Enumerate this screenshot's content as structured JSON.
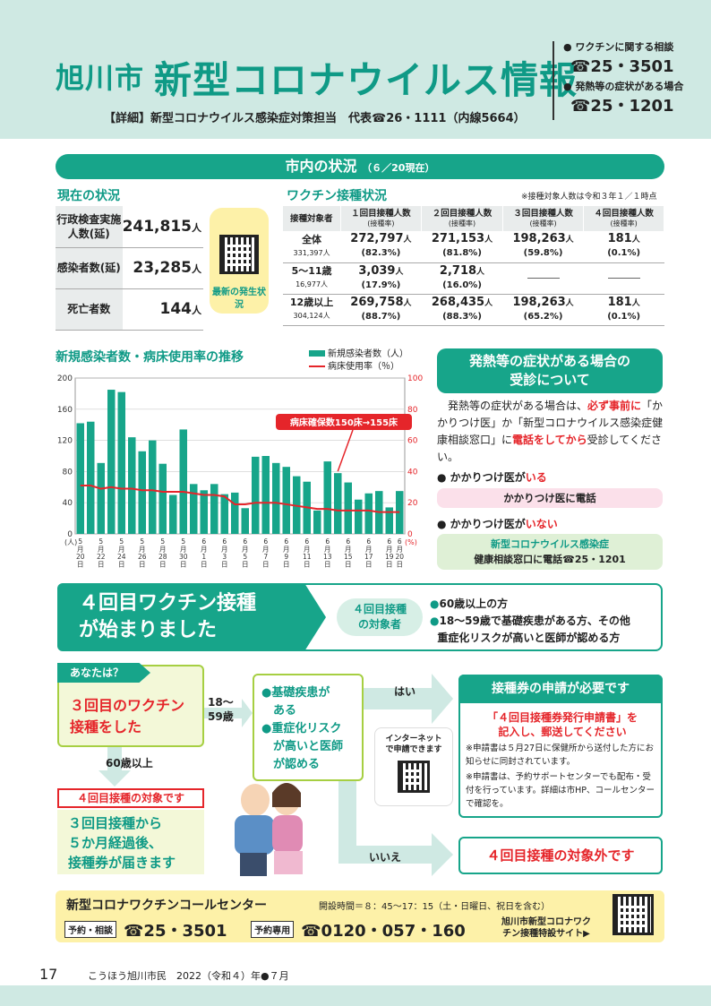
{
  "header": {
    "city": "旭川市",
    "title": "新型コロナウイルス情報",
    "detail": "【詳細】新型コロナウイルス感染症対策担当　代表☎26・1111（内線5664）",
    "contacts": [
      {
        "label": "ワクチンに関する相談",
        "phone": "☎25・3501"
      },
      {
        "label": "発熱等の症状がある場合",
        "phone": "☎25・1201"
      }
    ]
  },
  "situation": {
    "title": "市内の状況",
    "date": "（６／20現在）",
    "current_title": "現在の状況",
    "current": [
      {
        "label": "行政検査実施人数(延)",
        "value": "241,815",
        "unit": "人"
      },
      {
        "label": "感染者数(延)",
        "value": "23,285",
        "unit": "人"
      },
      {
        "label": "死亡者数",
        "value": "144",
        "unit": "人"
      }
    ],
    "qr_label": "最新の発生状況",
    "vaccine_title": "ワクチン接種状況",
    "vaccine_note": "※接種対象人数は令和３年１／１時点",
    "vaccine_headers": [
      "接種対象者",
      "１回目接種人数",
      "２回目接種人数",
      "３回目接種人数",
      "４回目接種人数"
    ],
    "vaccine_subheader": "(接種率)",
    "vaccine_rows": [
      {
        "group": "全体",
        "pop": "331,397人",
        "d1": "272,797",
        "r1": "(82.3%)",
        "d2": "271,153",
        "r2": "(81.8%)",
        "d3": "198,263",
        "r3": "(59.8%)",
        "d4": "181",
        "r4": "(0.1%)"
      },
      {
        "group": "5～11歳",
        "pop": "16,977人",
        "d1": "3,039",
        "r1": "(17.9%)",
        "d2": "2,718",
        "r2": "(16.0%)",
        "d3": "",
        "r3": "",
        "d4": "",
        "r4": ""
      },
      {
        "group": "12歳以上",
        "pop": "304,124人",
        "d1": "269,758",
        "r1": "(88.7%)",
        "d2": "268,435",
        "r2": "(88.3%)",
        "d3": "198,263",
        "r3": "(65.2%)",
        "d4": "181",
        "r4": "(0.1%)"
      }
    ],
    "unit": "人"
  },
  "chart_title": "新規感染者数・病床使用率の推移",
  "chart_data": {
    "type": "bar",
    "categories": [
      "5月20日",
      "5月21日",
      "5月22日",
      "5月23日",
      "5月24日",
      "5月25日",
      "5月26日",
      "5月27日",
      "5月28日",
      "5月29日",
      "5月30日",
      "5月31日",
      "6月1日",
      "6月2日",
      "6月3日",
      "6月4日",
      "6月5日",
      "6月6日",
      "6月7日",
      "6月8日",
      "6月9日",
      "6月10日",
      "6月11日",
      "6月12日",
      "6月13日",
      "6月14日",
      "6月15日",
      "6月16日",
      "6月17日",
      "6月18日",
      "6月19日",
      "6月20日"
    ],
    "tick_labels": [
      "5月20日",
      "5月22日",
      "5月24日",
      "5月26日",
      "5月28日",
      "5月30日",
      "6月1日",
      "6月3日",
      "6月5日",
      "6月7日",
      "6月9日",
      "6月11日",
      "6月13日",
      "6月15日",
      "6月17日",
      "6月19日",
      "6月20日"
    ],
    "series": [
      {
        "name": "新規感染者数（人）",
        "axis": "left",
        "values": [
          142,
          144,
          91,
          185,
          182,
          124,
          106,
          120,
          90,
          50,
          134,
          64,
          56,
          64,
          51,
          53,
          33,
          99,
          100,
          91,
          86,
          74,
          67,
          30,
          93,
          78,
          66,
          44,
          52,
          55,
          34,
          55
        ]
      },
      {
        "name": "病床使用率（％）",
        "axis": "right",
        "type": "line",
        "values": [
          31,
          31,
          29,
          30,
          29,
          29,
          28,
          28,
          27,
          27,
          27,
          26,
          25,
          25,
          24,
          19,
          19,
          20,
          20,
          20,
          19,
          18,
          17,
          16,
          16,
          15,
          15,
          15,
          15,
          14,
          14,
          14
        ]
      }
    ],
    "ylim_left": [
      0,
      200
    ],
    "ylim_right": [
      0,
      100
    ],
    "left_unit": "(人)",
    "right_unit": "(%)",
    "left_ticks": [
      0,
      40,
      80,
      120,
      160,
      200
    ],
    "right_ticks": [
      0,
      20,
      40,
      60,
      80,
      100
    ],
    "annotation": "病床確保数150床→155床",
    "legend_position": "top"
  },
  "fever": {
    "title1": "発熱等の症状がある場合の",
    "title2": "受診について",
    "text_a": "発熱等の症状がある場合は、",
    "text_b": "必ず事前に",
    "text_c": "「かかりつけ医」か「新型コロナウイルス感染症健康相談窓口」に",
    "text_d": "電話をしてから",
    "text_e": "受診してください。",
    "case1_a": "かかりつけ医が",
    "case1_b": "いる",
    "case1_box": "かかりつけ医に電話",
    "case2_a": "かかりつけ医が",
    "case2_b": "いない",
    "case2_box1": "新型コロナウイルス感染症",
    "case2_box2": "健康相談窓口に電話☎25・1201"
  },
  "fourth": {
    "head1": "４回目ワクチン接種",
    "head2": "が始まりました",
    "target1": "４回目接種",
    "target2": "の対象者",
    "cond1": "60歳以上の方",
    "cond2": "18～59歳で基礎疾患がある方、その他",
    "cond3": "重症化リスクが高いと医師が認める方"
  },
  "flow": {
    "you": "あなたは？",
    "you_text1": "３回目のワクチン",
    "you_text2": "接種をした",
    "age_a": "18～",
    "age_b": "59歳",
    "age_60": "60歳以上",
    "cond1": "●基礎疾患が",
    "cond2": "ある",
    "cond3": "●重症化リスク",
    "cond4": "が高いと医師",
    "cond5": "が認める",
    "yes": "はい",
    "no": "いいえ",
    "ticket_head": "接種券の申請が必要です",
    "ticket_form1": "「４回目接種券発行申請書」を",
    "ticket_form2": "記入し、郵送してください",
    "ticket_note1": "※申請書は５月27日に保健所から送付した方にお知らせに同封されています。",
    "ticket_note2": "※申請書は、予約サポートセンターでも配布・受付を行っています。詳細は市HP、コールセンターで確認を。",
    "online1": "インターネット",
    "online2": "で申請できます",
    "target_label": "４回目接種の対象です",
    "target_text1": "３回目接種から",
    "target_text2": "５か月経過後、",
    "target_text3": "接種券が届きます",
    "not_target": "４回目接種の対象外です"
  },
  "call_center": {
    "title": "新型コロナワクチンコールセンター",
    "hours": "開設時間＝８：45～17：15（土・日曜日、祝日を含む）",
    "tag1": "予約・相談",
    "phone1": "☎25・3501",
    "tag2": "予約専用",
    "phone2": "☎0120・057・160",
    "site1": "旭川市新型コロナワク",
    "site2": "チン接種特設サイト▶"
  },
  "footer": {
    "page": "17",
    "publication": "こうほう旭川市民　2022（令和４）年●７月"
  },
  "colors": {
    "teal": "#17a58a",
    "red": "#e5252a",
    "header_bg": "#cfe9e3"
  }
}
